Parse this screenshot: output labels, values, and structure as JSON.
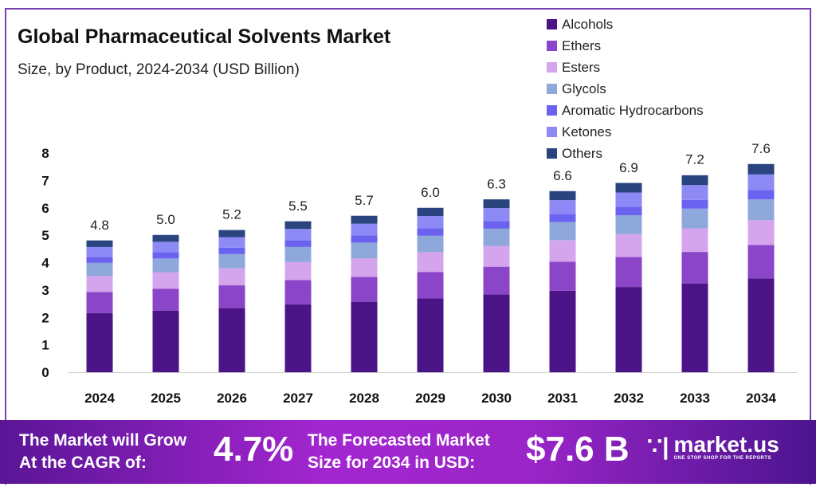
{
  "title": "Global Pharmaceutical Solvents Market",
  "subtitle": "Size, by Product, 2024-2034 (USD Billion)",
  "chart_data": {
    "type": "bar",
    "stacked": true,
    "categories": [
      "2024",
      "2025",
      "2026",
      "2027",
      "2028",
      "2029",
      "2030",
      "2031",
      "2032",
      "2033",
      "2034"
    ],
    "totals": [
      4.8,
      5.0,
      5.2,
      5.5,
      5.7,
      6.0,
      6.3,
      6.6,
      6.9,
      7.2,
      7.6
    ],
    "total_labels": [
      "4.8",
      "5.0",
      "5.2",
      "5.5",
      "5.7",
      "6.0",
      "6.3",
      "6.6",
      "6.9",
      "7.2",
      "7.6"
    ],
    "series": [
      {
        "name": "Alcohols",
        "color": "#4a1486",
        "values": [
          2.16,
          2.25,
          2.34,
          2.48,
          2.57,
          2.7,
          2.84,
          2.97,
          3.11,
          3.24,
          3.42
        ]
      },
      {
        "name": "Ethers",
        "color": "#8a45c8",
        "values": [
          0.77,
          0.8,
          0.83,
          0.88,
          0.91,
          0.96,
          1.01,
          1.06,
          1.1,
          1.15,
          1.22
        ]
      },
      {
        "name": "Esters",
        "color": "#d4a5ec",
        "values": [
          0.58,
          0.6,
          0.62,
          0.66,
          0.68,
          0.72,
          0.76,
          0.79,
          0.83,
          0.86,
          0.91
        ]
      },
      {
        "name": "Glycols",
        "color": "#8fa8db",
        "values": [
          0.48,
          0.5,
          0.52,
          0.55,
          0.57,
          0.6,
          0.63,
          0.66,
          0.69,
          0.72,
          0.76
        ]
      },
      {
        "name": "Aromatic Hydrocarbons",
        "color": "#6b63f0",
        "values": [
          0.22,
          0.23,
          0.23,
          0.25,
          0.26,
          0.27,
          0.28,
          0.3,
          0.31,
          0.32,
          0.34
        ]
      },
      {
        "name": "Ketones",
        "color": "#8d8af5",
        "values": [
          0.36,
          0.38,
          0.39,
          0.41,
          0.43,
          0.45,
          0.47,
          0.5,
          0.52,
          0.54,
          0.57
        ]
      },
      {
        "name": "Others",
        "color": "#2a4480",
        "values": [
          0.24,
          0.25,
          0.26,
          0.28,
          0.29,
          0.3,
          0.32,
          0.33,
          0.35,
          0.36,
          0.38
        ]
      }
    ],
    "yticks": [
      "0",
      "1",
      "2",
      "3",
      "4",
      "5",
      "6",
      "7",
      "8"
    ],
    "ylim": [
      0,
      8
    ],
    "grid": false,
    "legend": "top-right"
  },
  "footer": {
    "cagr_text_1": "The Market will Grow",
    "cagr_text_2": "At the CAGR of:",
    "cagr_value": "4.7%",
    "forecast_text_1": "The Forecasted Market",
    "forecast_text_2": "Size for 2034 in USD:",
    "forecast_value": "$7.6 B",
    "brand": "market.us",
    "tagline": "ONE STOP SHOP FOR THE REPORTS"
  }
}
